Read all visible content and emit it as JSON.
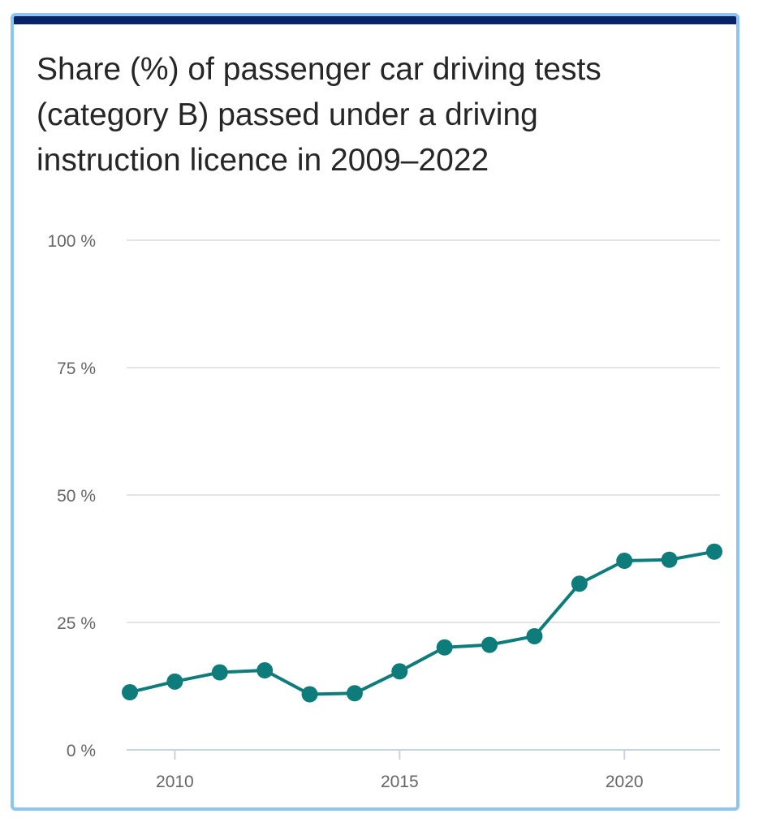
{
  "chart_data": {
    "type": "line",
    "title": "Share (%) of passenger car driving tests (category B) passed under a driving instruction licence in 2009–2022",
    "xlabel": "",
    "ylabel": "",
    "x": [
      2009,
      2010,
      2011,
      2012,
      2013,
      2014,
      2015,
      2016,
      2017,
      2018,
      2019,
      2020,
      2021,
      2022
    ],
    "series": [
      {
        "values": [
          11.3,
          13.4,
          15.2,
          15.6,
          10.9,
          11.1,
          15.4,
          20.1,
          20.6,
          22.3,
          32.6,
          37.1,
          37.3,
          38.9
        ]
      }
    ],
    "ylim": [
      0,
      100
    ],
    "xlim": [
      2009,
      2022
    ],
    "y_ticks": [
      "0 %",
      "25 %",
      "50 %",
      "75 %",
      "100 %"
    ],
    "y_tick_values": [
      0,
      25,
      50,
      75,
      100
    ],
    "x_ticks": [
      "2010",
      "2015",
      "2020"
    ],
    "x_tick_values": [
      2010,
      2015,
      2020
    ],
    "grid": true,
    "legend": "none",
    "colors": {
      "line": "#0e7c7b",
      "grid": "#dcdcdc",
      "axis": "#c9d3df",
      "border": "#8cc4f2",
      "topbar": "#0a2266"
    }
  }
}
